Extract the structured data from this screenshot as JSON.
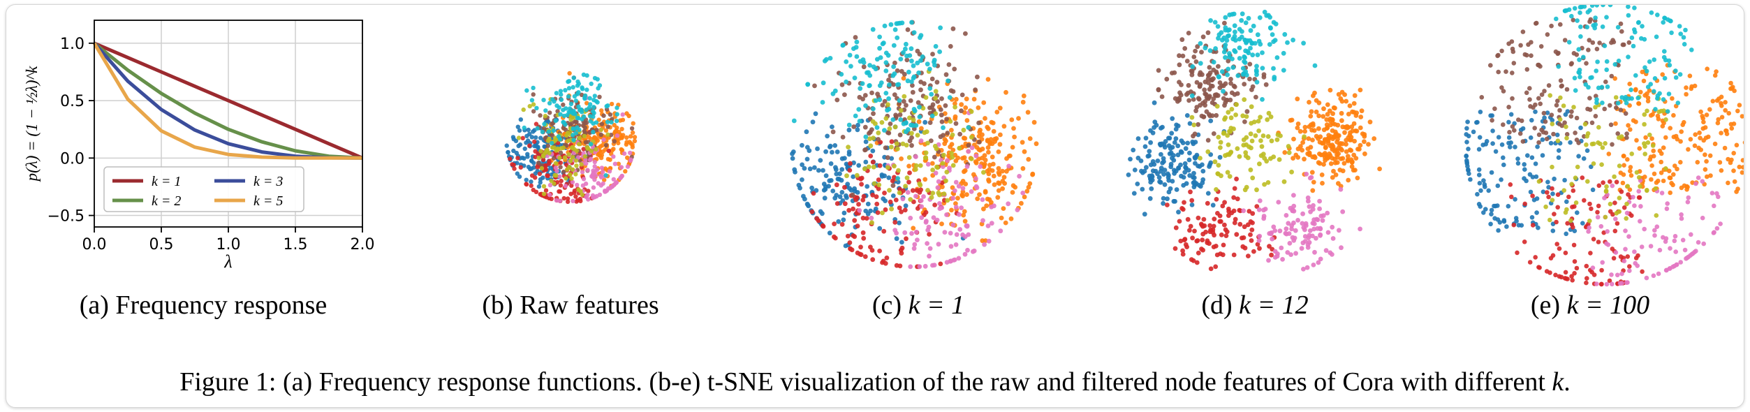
{
  "caption": {
    "text": "Figure 1: (a) Frequency response functions. (b-e) t-SNE visualization of the raw and filtered node features of Cora with different",
    "math": "k",
    "end": "."
  },
  "subcaptions": [
    {
      "label": "(a)",
      "text": "Frequency response",
      "math": ""
    },
    {
      "label": "(b)",
      "text": "Raw features",
      "math": ""
    },
    {
      "label": "(c)",
      "text": "",
      "math": "k = 1"
    },
    {
      "label": "(d)",
      "text": "",
      "math": "k = 12"
    },
    {
      "label": "(e)",
      "text": "",
      "math": "k = 100"
    }
  ],
  "chart_data": [
    {
      "type": "line",
      "title": "",
      "xlabel": "λ",
      "ylabel": "p(λ) = (1 − ½λ)^k",
      "xlim": [
        0.0,
        2.0
      ],
      "ylim": [
        -0.6,
        1.2
      ],
      "xticks": [
        "0.0",
        "0.5",
        "1.0",
        "1.5",
        "2.0"
      ],
      "yticks": [
        "−0.5",
        "0.0",
        "0.5",
        "1.0"
      ],
      "grid": true,
      "legend_placement": "lower-left",
      "x": [
        0.0,
        0.25,
        0.5,
        0.75,
        1.0,
        1.25,
        1.5,
        1.75,
        2.0
      ],
      "series": [
        {
          "name": "k = 1",
          "color": "#9b2a2f",
          "values": [
            1.0,
            0.875,
            0.75,
            0.625,
            0.5,
            0.375,
            0.25,
            0.125,
            0.0
          ]
        },
        {
          "name": "k = 2",
          "color": "#66904a",
          "values": [
            1.0,
            0.766,
            0.563,
            0.391,
            0.25,
            0.141,
            0.063,
            0.016,
            0.0
          ]
        },
        {
          "name": "k = 3",
          "color": "#3b4d9b",
          "values": [
            1.0,
            0.67,
            0.422,
            0.244,
            0.125,
            0.053,
            0.016,
            0.002,
            0.0
          ]
        },
        {
          "name": "k = 5",
          "color": "#e8a64a",
          "values": [
            1.0,
            0.513,
            0.237,
            0.095,
            0.031,
            0.008,
            0.001,
            0.0,
            0.0
          ]
        }
      ]
    },
    {
      "type": "scatter",
      "panel": "(b)",
      "classes": [
        {
          "color": "#1f77b4",
          "points": 150
        },
        {
          "color": "#ff7f0e",
          "points": 200
        },
        {
          "color": "#d62728",
          "points": 120
        },
        {
          "color": "#8c564b",
          "points": 130
        },
        {
          "color": "#e377c2",
          "points": 100
        },
        {
          "color": "#bcbd22",
          "points": 90
        },
        {
          "color": "#17becf",
          "points": 110
        }
      ]
    },
    {
      "type": "scatter",
      "panel": "(c)",
      "classes": [
        {
          "color": "#1f77b4",
          "points": 160
        },
        {
          "color": "#ff7f0e",
          "points": 240
        },
        {
          "color": "#d62728",
          "points": 120
        },
        {
          "color": "#8c564b",
          "points": 150
        },
        {
          "color": "#e377c2",
          "points": 110
        },
        {
          "color": "#bcbd22",
          "points": 90
        },
        {
          "color": "#17becf",
          "points": 130
        }
      ]
    },
    {
      "type": "scatter",
      "panel": "(d)",
      "classes": [
        {
          "color": "#1f77b4",
          "points": 160
        },
        {
          "color": "#ff7f0e",
          "points": 220
        },
        {
          "color": "#d62728",
          "points": 110
        },
        {
          "color": "#8c564b",
          "points": 150
        },
        {
          "color": "#e377c2",
          "points": 110
        },
        {
          "color": "#bcbd22",
          "points": 90
        },
        {
          "color": "#17becf",
          "points": 120
        }
      ]
    },
    {
      "type": "scatter",
      "panel": "(e)",
      "classes": [
        {
          "color": "#1f77b4",
          "points": 150
        },
        {
          "color": "#ff7f0e",
          "points": 200
        },
        {
          "color": "#d62728",
          "points": 110
        },
        {
          "color": "#8c564b",
          "points": 140
        },
        {
          "color": "#e377c2",
          "points": 100
        },
        {
          "color": "#bcbd22",
          "points": 80
        },
        {
          "color": "#17becf",
          "points": 120
        }
      ]
    }
  ]
}
